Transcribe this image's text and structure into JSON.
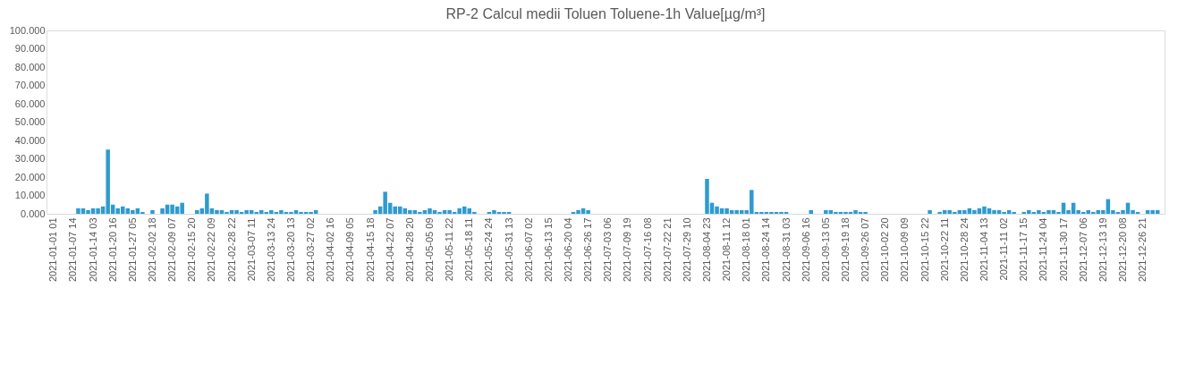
{
  "chart_data": {
    "type": "bar",
    "title": "RP-2 Calcul medii Toluen Toluene-1h Value[µg/m³]",
    "categories": [
      "2021-01-01 01",
      null,
      null,
      null,
      "2021-01-07 14",
      null,
      null,
      null,
      "2021-01-14 03",
      null,
      null,
      null,
      "2021-01-20 16",
      null,
      null,
      null,
      "2021-01-27 05",
      null,
      null,
      null,
      "2021-02-02 18",
      null,
      null,
      null,
      "2021-02-09 07",
      null,
      null,
      null,
      "2021-02-15 20",
      null,
      null,
      null,
      "2021-02-22 09",
      null,
      null,
      null,
      "2021-02-28 22",
      null,
      null,
      null,
      "2021-03-07 11",
      null,
      null,
      null,
      "2021-03-13 24",
      null,
      null,
      null,
      "2021-03-20 13",
      null,
      null,
      null,
      "2021-03-27 02",
      null,
      null,
      null,
      "2021-04-02 16",
      null,
      null,
      null,
      "2021-04-09 05",
      null,
      null,
      null,
      "2021-04-15 18",
      null,
      null,
      null,
      "2021-04-22 07",
      null,
      null,
      null,
      "2021-04-28 20",
      null,
      null,
      null,
      "2021-05-05 09",
      null,
      null,
      null,
      "2021-05-11 22",
      null,
      null,
      null,
      "2021-05-18 11",
      null,
      null,
      null,
      "2021-05-24 24",
      null,
      null,
      null,
      "2021-05-31 13",
      null,
      null,
      null,
      "2021-06-07 02",
      null,
      null,
      null,
      "2021-06-13 15",
      null,
      null,
      null,
      "2021-06-20 04",
      null,
      null,
      null,
      "2021-06-26 17",
      null,
      null,
      null,
      "2021-07-03 06",
      null,
      null,
      null,
      "2021-07-09 19",
      null,
      null,
      null,
      "2021-07-16 08",
      null,
      null,
      null,
      "2021-07-22 21",
      null,
      null,
      null,
      "2021-07-29 10",
      null,
      null,
      null,
      "2021-08-04 23",
      null,
      null,
      null,
      "2021-08-11 12",
      null,
      null,
      null,
      "2021-08-18 01",
      null,
      null,
      null,
      "2021-08-24 14",
      null,
      null,
      null,
      "2021-08-31 03",
      null,
      null,
      null,
      "2021-09-06 16",
      null,
      null,
      null,
      "2021-09-13 05",
      null,
      null,
      null,
      "2021-09-19 18",
      null,
      null,
      null,
      "2021-09-26 07",
      null,
      null,
      null,
      "2021-10-02 20",
      null,
      null,
      null,
      "2021-10-09 09",
      null,
      null,
      null,
      "2021-10-15 22",
      null,
      null,
      null,
      "2021-10-22 11",
      null,
      null,
      null,
      "2021-10-28 24",
      null,
      null,
      null,
      "2021-11-04 13",
      null,
      null,
      null,
      "2021-11-11 02",
      null,
      null,
      null,
      "2021-11-17 15",
      null,
      null,
      null,
      "2021-11-24 04",
      null,
      null,
      null,
      "2021-11-30 17",
      null,
      null,
      null,
      "2021-12-07 06",
      null,
      null,
      null,
      "2021-12-13 19",
      null,
      null,
      null,
      "2021-12-20 08",
      null,
      null,
      null,
      "2021-12-26 21",
      null,
      null,
      null
    ],
    "series": [
      {
        "color": "#2e9bd0",
        "values": [
          null,
          null,
          null,
          null,
          null,
          3,
          3,
          2,
          3,
          3,
          4,
          35,
          5,
          3,
          4,
          3,
          2,
          3,
          1,
          null,
          2,
          null,
          3,
          5,
          5,
          4,
          6,
          null,
          null,
          2,
          3,
          11,
          3,
          2,
          2,
          1,
          2,
          2,
          1,
          2,
          2,
          1,
          2,
          1,
          2,
          1,
          2,
          1,
          1,
          2,
          1,
          1,
          1,
          2,
          null,
          null,
          null,
          null,
          null,
          null,
          null,
          null,
          null,
          null,
          null,
          2,
          4,
          12,
          6,
          4,
          4,
          3,
          2,
          2,
          1,
          2,
          3,
          2,
          1,
          2,
          2,
          1,
          3,
          4,
          3,
          1,
          null,
          null,
          1,
          2,
          1,
          1,
          1,
          null,
          null,
          null,
          null,
          null,
          null,
          null,
          null,
          null,
          null,
          null,
          null,
          1,
          2,
          3,
          2,
          null,
          null,
          null,
          null,
          null,
          null,
          null,
          null,
          null,
          null,
          null,
          null,
          null,
          null,
          null,
          null,
          null,
          null,
          null,
          null,
          null,
          null,
          null,
          19,
          6,
          4,
          3,
          3,
          2,
          2,
          2,
          2,
          13,
          1,
          1,
          1,
          1,
          1,
          1,
          1,
          null,
          null,
          null,
          null,
          2,
          null,
          null,
          2,
          2,
          1,
          1,
          1,
          1,
          2,
          1,
          1,
          null,
          null,
          null,
          null,
          null,
          null,
          null,
          null,
          null,
          null,
          null,
          null,
          2,
          null,
          1,
          2,
          2,
          1,
          2,
          2,
          3,
          2,
          3,
          4,
          3,
          2,
          2,
          1,
          2,
          1,
          null,
          1,
          2,
          1,
          2,
          1,
          2,
          2,
          1,
          6,
          2,
          6,
          2,
          1,
          2,
          1,
          2,
          2,
          8,
          2,
          1,
          2,
          6,
          2,
          1,
          null,
          2,
          2,
          2
        ]
      }
    ],
    "ylim": [
      0,
      100
    ],
    "yticks": [
      {
        "value": 0,
        "label": "0.000"
      },
      {
        "value": 10,
        "label": "10.000"
      },
      {
        "value": 20,
        "label": "20.000"
      },
      {
        "value": 30,
        "label": "30.000"
      },
      {
        "value": 40,
        "label": "40.000"
      },
      {
        "value": 50,
        "label": "50.000"
      },
      {
        "value": 60,
        "label": "60.000"
      },
      {
        "value": 70,
        "label": "70.000"
      },
      {
        "value": 80,
        "label": "80.000"
      },
      {
        "value": 90,
        "label": "90.000"
      },
      {
        "value": 100,
        "label": "100.000"
      }
    ],
    "grid": false
  }
}
